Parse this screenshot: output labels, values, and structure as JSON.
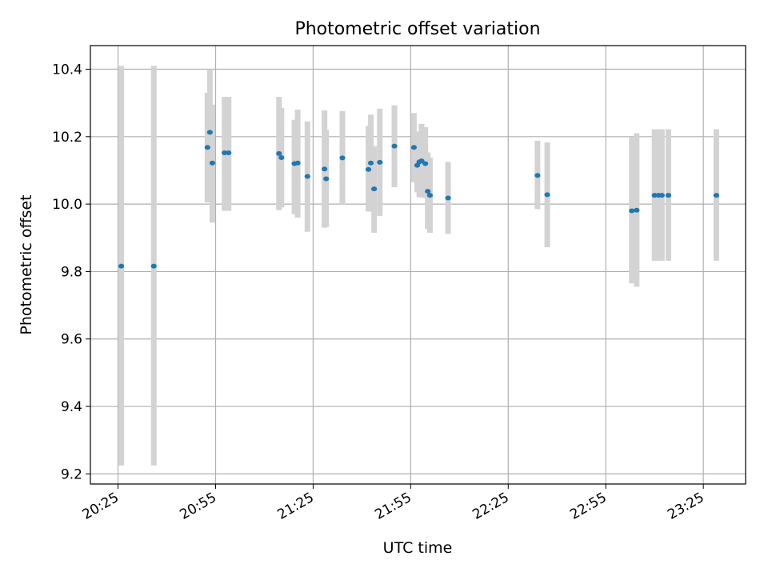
{
  "chart_data": {
    "type": "scatter",
    "title": "Photometric offset variation",
    "xlabel": "UTC time",
    "ylabel": "Photometric offset",
    "xlim": [
      "20:16:30",
      "23:38:00"
    ],
    "ylim": [
      9.17,
      10.47
    ],
    "grid": true,
    "x_ticks": [
      "20:25",
      "20:55",
      "21:25",
      "21:55",
      "22:25",
      "22:55",
      "23:25"
    ],
    "y_ticks": [
      "9.2",
      "9.4",
      "9.6",
      "9.8",
      "10.0",
      "10.2",
      "10.4"
    ],
    "marker_color": "#1f77b4",
    "errorbar_color": "#d3d3d3",
    "series": [
      {
        "points": [
          {
            "x": "20:26:00",
            "y": 9.816,
            "lo": 9.225,
            "hi": 10.41
          },
          {
            "x": "20:36:00",
            "y": 9.816,
            "lo": 9.225,
            "hi": 10.41
          },
          {
            "x": "20:52:30",
            "y": 10.168,
            "lo": 10.005,
            "hi": 10.33
          },
          {
            "x": "20:53:15",
            "y": 10.213,
            "lo": 10.02,
            "hi": 10.4
          },
          {
            "x": "20:54:00",
            "y": 10.122,
            "lo": 9.945,
            "hi": 10.295
          },
          {
            "x": "20:57:45",
            "y": 10.152,
            "lo": 9.98,
            "hi": 10.318
          },
          {
            "x": "20:59:00",
            "y": 10.152,
            "lo": 9.98,
            "hi": 10.318
          },
          {
            "x": "21:14:30",
            "y": 10.15,
            "lo": 9.982,
            "hi": 10.318
          },
          {
            "x": "21:15:15",
            "y": 10.138,
            "lo": 9.99,
            "hi": 10.285
          },
          {
            "x": "21:19:15",
            "y": 10.12,
            "lo": 9.97,
            "hi": 10.25
          },
          {
            "x": "21:20:15",
            "y": 10.122,
            "lo": 9.96,
            "hi": 10.28
          },
          {
            "x": "21:23:15",
            "y": 10.082,
            "lo": 9.918,
            "hi": 10.245
          },
          {
            "x": "21:28:30",
            "y": 10.104,
            "lo": 9.93,
            "hi": 10.278
          },
          {
            "x": "21:29:00",
            "y": 10.075,
            "lo": 9.932,
            "hi": 10.22
          },
          {
            "x": "21:34:00",
            "y": 10.137,
            "lo": 9.998,
            "hi": 10.276
          },
          {
            "x": "21:42:00",
            "y": 10.103,
            "lo": 9.978,
            "hi": 10.232
          },
          {
            "x": "21:42:45",
            "y": 10.122,
            "lo": 9.978,
            "hi": 10.265
          },
          {
            "x": "21:43:45",
            "y": 10.045,
            "lo": 9.915,
            "hi": 10.172
          },
          {
            "x": "21:45:30",
            "y": 10.124,
            "lo": 9.965,
            "hi": 10.283
          },
          {
            "x": "21:50:00",
            "y": 10.172,
            "lo": 10.05,
            "hi": 10.293
          },
          {
            "x": "21:56:00",
            "y": 10.168,
            "lo": 10.065,
            "hi": 10.27
          },
          {
            "x": "21:57:00",
            "y": 10.115,
            "lo": 10.035,
            "hi": 10.195
          },
          {
            "x": "21:57:40",
            "y": 10.125,
            "lo": 10.02,
            "hi": 10.215
          },
          {
            "x": "21:58:20",
            "y": 10.128,
            "lo": 10.02,
            "hi": 10.238
          },
          {
            "x": "21:59:30",
            "y": 10.12,
            "lo": 10.018,
            "hi": 10.228
          },
          {
            "x": "22:00:15",
            "y": 10.038,
            "lo": 9.926,
            "hi": 10.153
          },
          {
            "x": "22:00:55",
            "y": 10.026,
            "lo": 9.915,
            "hi": 10.138
          },
          {
            "x": "22:06:30",
            "y": 10.018,
            "lo": 9.912,
            "hi": 10.125
          },
          {
            "x": "22:34:00",
            "y": 10.085,
            "lo": 9.985,
            "hi": 10.188
          },
          {
            "x": "22:37:00",
            "y": 10.028,
            "lo": 9.872,
            "hi": 10.183
          },
          {
            "x": "23:03:00",
            "y": 9.98,
            "lo": 9.765,
            "hi": 10.198
          },
          {
            "x": "23:04:30",
            "y": 9.982,
            "lo": 9.755,
            "hi": 10.21
          },
          {
            "x": "23:10:00",
            "y": 10.026,
            "lo": 9.832,
            "hi": 10.222
          },
          {
            "x": "23:11:15",
            "y": 10.026,
            "lo": 9.832,
            "hi": 10.222
          },
          {
            "x": "23:12:15",
            "y": 10.026,
            "lo": 9.832,
            "hi": 10.222
          },
          {
            "x": "23:14:15",
            "y": 10.026,
            "lo": 9.832,
            "hi": 10.222
          },
          {
            "x": "23:29:00",
            "y": 10.026,
            "lo": 9.832,
            "hi": 10.222
          }
        ]
      }
    ]
  }
}
